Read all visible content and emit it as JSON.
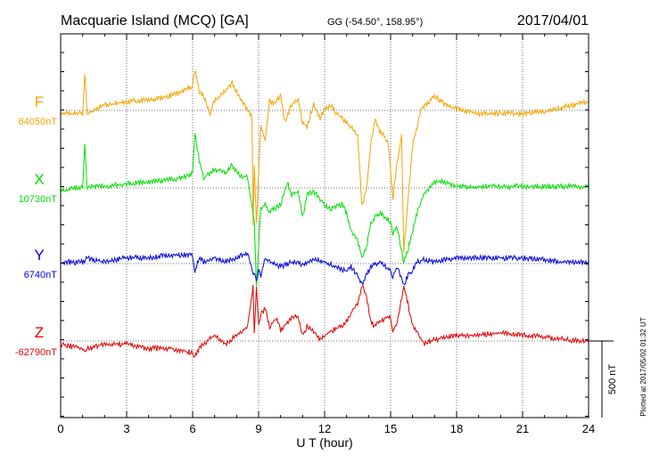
{
  "header": {
    "station": "Macquarie Island (MCQ)  [GA]",
    "coords": "GG (-54.50°, 158.95°)",
    "date": "2017/04/01"
  },
  "plotted_note": "Plotted at 2017/05/02 01:32 UT",
  "chart_data": {
    "type": "line",
    "xlabel": "U T (hour)",
    "xlim": [
      0,
      24
    ],
    "xticks": [
      "0",
      "3",
      "6",
      "9",
      "12",
      "15",
      "18",
      "21",
      "24"
    ],
    "grid": true,
    "scale_bar_label": "500 nT",
    "scale_nT": 500,
    "series": [
      {
        "name": "F",
        "baseline_label": "64050nT",
        "color": "#f5a300",
        "points": [
          [
            0,
            5
          ],
          [
            1,
            5
          ],
          [
            1.1,
            -40
          ],
          [
            1.2,
            5
          ],
          [
            2,
            -5
          ],
          [
            3,
            -8
          ],
          [
            4,
            -10
          ],
          [
            5,
            -15
          ],
          [
            5.5,
            -20
          ],
          [
            6,
            -25
          ],
          [
            6.1,
            -45
          ],
          [
            6.3,
            -20
          ],
          [
            6.5,
            -15
          ],
          [
            6.8,
            5
          ],
          [
            7,
            -10
          ],
          [
            7.5,
            -20
          ],
          [
            7.8,
            -30
          ],
          [
            8,
            -20
          ],
          [
            8.3,
            -5
          ],
          [
            8.5,
            0
          ],
          [
            8.7,
            10
          ],
          [
            8.75,
            130
          ],
          [
            8.8,
            60
          ],
          [
            8.9,
            130
          ],
          [
            9,
            70
          ],
          [
            9.1,
            20
          ],
          [
            9.3,
            35
          ],
          [
            9.5,
            -10
          ],
          [
            9.7,
            -5
          ],
          [
            10,
            -15
          ],
          [
            10.2,
            15
          ],
          [
            10.5,
            -5
          ],
          [
            10.8,
            -10
          ],
          [
            11,
            15
          ],
          [
            11.2,
            20
          ],
          [
            11.5,
            -5
          ],
          [
            11.8,
            10
          ],
          [
            12,
            0
          ],
          [
            12.3,
            -5
          ],
          [
            12.5,
            5
          ],
          [
            12.8,
            10
          ],
          [
            13,
            15
          ],
          [
            13.2,
            20
          ],
          [
            13.5,
            30
          ],
          [
            13.7,
            110
          ],
          [
            13.9,
            90
          ],
          [
            14.1,
            40
          ],
          [
            14.3,
            10
          ],
          [
            14.5,
            25
          ],
          [
            14.7,
            30
          ],
          [
            14.9,
            40
          ],
          [
            15.1,
            100
          ],
          [
            15.3,
            60
          ],
          [
            15.5,
            30
          ],
          [
            15.6,
            160
          ],
          [
            15.8,
            100
          ],
          [
            16,
            40
          ],
          [
            16.2,
            20
          ],
          [
            16.4,
            0
          ],
          [
            16.8,
            -10
          ],
          [
            17,
            -15
          ],
          [
            17.5,
            -5
          ],
          [
            18,
            0
          ],
          [
            19,
            5
          ],
          [
            20,
            5
          ],
          [
            21,
            5
          ],
          [
            22,
            3
          ],
          [
            23,
            -3
          ],
          [
            24,
            -8
          ]
        ]
      },
      {
        "name": "X",
        "baseline_label": "10730nT",
        "color": "#00e000",
        "points": [
          [
            0,
            5
          ],
          [
            1,
            0
          ],
          [
            1.1,
            -45
          ],
          [
            1.2,
            0
          ],
          [
            2,
            0
          ],
          [
            3,
            -3
          ],
          [
            4,
            -5
          ],
          [
            5,
            -8
          ],
          [
            5.5,
            -10
          ],
          [
            6,
            -15
          ],
          [
            6.1,
            -60
          ],
          [
            6.3,
            -30
          ],
          [
            6.5,
            -10
          ],
          [
            6.8,
            -15
          ],
          [
            7,
            -20
          ],
          [
            7.5,
            -15
          ],
          [
            7.8,
            -25
          ],
          [
            8,
            -15
          ],
          [
            8.5,
            -10
          ],
          [
            8.8,
            40
          ],
          [
            8.9,
            110
          ],
          [
            9,
            70
          ],
          [
            9.1,
            25
          ],
          [
            9.3,
            20
          ],
          [
            9.5,
            30
          ],
          [
            9.7,
            25
          ],
          [
            10,
            20
          ],
          [
            10.3,
            -5
          ],
          [
            10.5,
            10
          ],
          [
            10.8,
            5
          ],
          [
            11,
            35
          ],
          [
            11.2,
            10
          ],
          [
            11.5,
            5
          ],
          [
            11.8,
            15
          ],
          [
            12,
            20
          ],
          [
            12.3,
            25
          ],
          [
            12.8,
            20
          ],
          [
            13,
            30
          ],
          [
            13.2,
            50
          ],
          [
            13.5,
            60
          ],
          [
            13.7,
            80
          ],
          [
            13.9,
            70
          ],
          [
            14.1,
            40
          ],
          [
            14.5,
            30
          ],
          [
            15,
            40
          ],
          [
            15.1,
            55
          ],
          [
            15.3,
            45
          ],
          [
            15.6,
            85
          ],
          [
            15.8,
            70
          ],
          [
            16,
            50
          ],
          [
            16.2,
            30
          ],
          [
            16.5,
            10
          ],
          [
            16.8,
            0
          ],
          [
            17,
            -5
          ],
          [
            17.5,
            -5
          ],
          [
            18,
            0
          ],
          [
            19,
            0
          ],
          [
            20,
            0
          ],
          [
            21,
            0
          ],
          [
            22,
            0
          ],
          [
            23,
            0
          ],
          [
            24,
            0
          ]
        ]
      },
      {
        "name": "Y",
        "baseline_label": "6740nT",
        "color": "#0000e0",
        "points": [
          [
            0,
            0
          ],
          [
            1,
            0
          ],
          [
            1.2,
            -5
          ],
          [
            2,
            0
          ],
          [
            3,
            -5
          ],
          [
            4,
            -5
          ],
          [
            5,
            -8
          ],
          [
            6,
            -8
          ],
          [
            6.1,
            10
          ],
          [
            6.3,
            -5
          ],
          [
            6.5,
            0
          ],
          [
            7,
            -5
          ],
          [
            7.5,
            0
          ],
          [
            8,
            -5
          ],
          [
            8.5,
            -10
          ],
          [
            8.8,
            15
          ],
          [
            8.9,
            20
          ],
          [
            9,
            10
          ],
          [
            9.1,
            15
          ],
          [
            9.3,
            -5
          ],
          [
            9.5,
            0
          ],
          [
            10,
            5
          ],
          [
            10.5,
            0
          ],
          [
            11,
            3
          ],
          [
            11.5,
            -3
          ],
          [
            12,
            0
          ],
          [
            12.5,
            5
          ],
          [
            13,
            10
          ],
          [
            13.2,
            5
          ],
          [
            13.5,
            15
          ],
          [
            13.7,
            25
          ],
          [
            13.9,
            15
          ],
          [
            14.1,
            5
          ],
          [
            14.5,
            0
          ],
          [
            15,
            10
          ],
          [
            15.1,
            15
          ],
          [
            15.3,
            5
          ],
          [
            15.6,
            25
          ],
          [
            15.8,
            15
          ],
          [
            16,
            10
          ],
          [
            16.2,
            0
          ],
          [
            16.5,
            -3
          ],
          [
            17,
            0
          ],
          [
            18,
            -5
          ],
          [
            19,
            -5
          ],
          [
            20,
            -5
          ],
          [
            21,
            -5
          ],
          [
            22,
            -3
          ],
          [
            23,
            0
          ],
          [
            24,
            0
          ]
        ]
      },
      {
        "name": "Z",
        "baseline_label": "-62790nT",
        "color": "#e00000",
        "points": [
          [
            0,
            5
          ],
          [
            1,
            10
          ],
          [
            1.1,
            15
          ],
          [
            1.2,
            10
          ],
          [
            2,
            5
          ],
          [
            3,
            5
          ],
          [
            4,
            10
          ],
          [
            5,
            10
          ],
          [
            6,
            15
          ],
          [
            6.1,
            20
          ],
          [
            6.3,
            10
          ],
          [
            6.5,
            5
          ],
          [
            7,
            -5
          ],
          [
            7.5,
            5
          ],
          [
            8,
            -5
          ],
          [
            8.5,
            -15
          ],
          [
            8.75,
            -60
          ],
          [
            8.8,
            -5
          ],
          [
            8.9,
            -60
          ],
          [
            9,
            -15
          ],
          [
            9.1,
            -30
          ],
          [
            9.3,
            -35
          ],
          [
            9.5,
            -15
          ],
          [
            9.8,
            -25
          ],
          [
            10,
            -10
          ],
          [
            10.3,
            -20
          ],
          [
            10.5,
            -25
          ],
          [
            10.8,
            -25
          ],
          [
            11,
            -5
          ],
          [
            11.2,
            -15
          ],
          [
            11.5,
            -10
          ],
          [
            11.8,
            0
          ],
          [
            12,
            -5
          ],
          [
            12.3,
            -10
          ],
          [
            12.8,
            -15
          ],
          [
            13,
            -20
          ],
          [
            13.2,
            -30
          ],
          [
            13.5,
            -40
          ],
          [
            13.7,
            -60
          ],
          [
            13.9,
            -50
          ],
          [
            14.1,
            -20
          ],
          [
            14.3,
            -15
          ],
          [
            14.5,
            -20
          ],
          [
            14.8,
            -25
          ],
          [
            15,
            -25
          ],
          [
            15.1,
            -10
          ],
          [
            15.3,
            -20
          ],
          [
            15.6,
            -60
          ],
          [
            15.8,
            -40
          ],
          [
            16,
            -15
          ],
          [
            16.2,
            -10
          ],
          [
            16.5,
            5
          ],
          [
            17,
            0
          ],
          [
            18,
            -5
          ],
          [
            19,
            -5
          ],
          [
            20,
            -8
          ],
          [
            21,
            -5
          ],
          [
            22,
            -3
          ],
          [
            23,
            0
          ],
          [
            24,
            2
          ]
        ]
      }
    ]
  }
}
